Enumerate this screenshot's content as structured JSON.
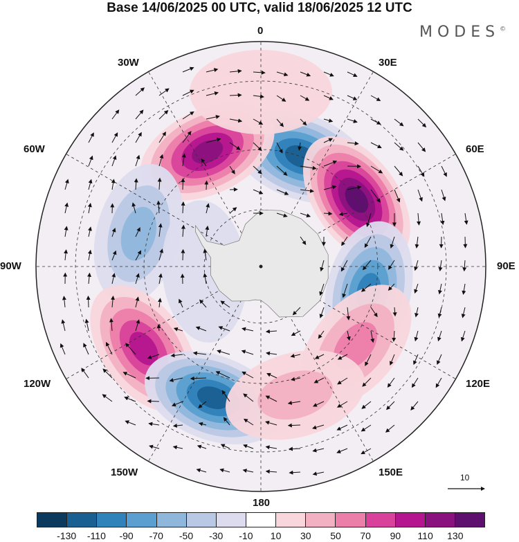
{
  "title": "Base 14/06/2025 00 UTC, valid 18/06/2025 12 UTC",
  "brand": "MODES",
  "brand_mark": "©",
  "longitude_labels": {
    "lon_0": "0",
    "lon_30e": "30E",
    "lon_60e": "60E",
    "lon_90e": "90E",
    "lon_120e": "120E",
    "lon_150e": "150E",
    "lon_180": "180",
    "lon_150w": "150W",
    "lon_120w": "120W",
    "lon_90w": "90W",
    "lon_60w": "60W",
    "lon_30w": "30W"
  },
  "reference_vector_label": "10",
  "colorbar": {
    "colors": [
      "#0b3a5e",
      "#1a5f91",
      "#2f82ba",
      "#5a9fcf",
      "#8fb7dc",
      "#b9c8e4",
      "#dcdcee",
      "#ffffff",
      "#f8d6dc",
      "#f3b0c3",
      "#ec7eaa",
      "#d8429a",
      "#b5158e",
      "#8a127f",
      "#5e106f"
    ],
    "labels": [
      "-130",
      "-110",
      "-90",
      "-70",
      "-50",
      "-30",
      "-10",
      "10",
      "30",
      "50",
      "70",
      "90",
      "110",
      "130"
    ]
  },
  "anomaly_centers": [
    {
      "lon": 20,
      "lat": -50,
      "value": -120,
      "name": "low-near-20e"
    },
    {
      "lon": -25,
      "lat": -47,
      "value": 115,
      "name": "high-near-25w"
    },
    {
      "lon": 55,
      "lat": -50,
      "value": 130,
      "name": "high-near-55e"
    },
    {
      "lon": -75,
      "lat": -47,
      "value": -60,
      "name": "low-near-75w"
    },
    {
      "lon": 103,
      "lat": -52,
      "value": -95,
      "name": "low-near-103e"
    },
    {
      "lon": -125,
      "lat": -42,
      "value": 105,
      "name": "high-near-125w"
    },
    {
      "lon": -160,
      "lat": -43,
      "value": -115,
      "name": "low-near-160w"
    },
    {
      "lon": 130,
      "lat": -48,
      "value": 55,
      "name": "high-near-130e"
    },
    {
      "lon": 165,
      "lat": -45,
      "value": 40,
      "name": "high-near-165e"
    },
    {
      "lon": 0,
      "lat": -33,
      "value": 20,
      "name": "weak-high-0"
    },
    {
      "lon": -95,
      "lat": -70,
      "value": -20,
      "name": "weak-low-95w"
    }
  ],
  "continent_name": "Antarctica"
}
